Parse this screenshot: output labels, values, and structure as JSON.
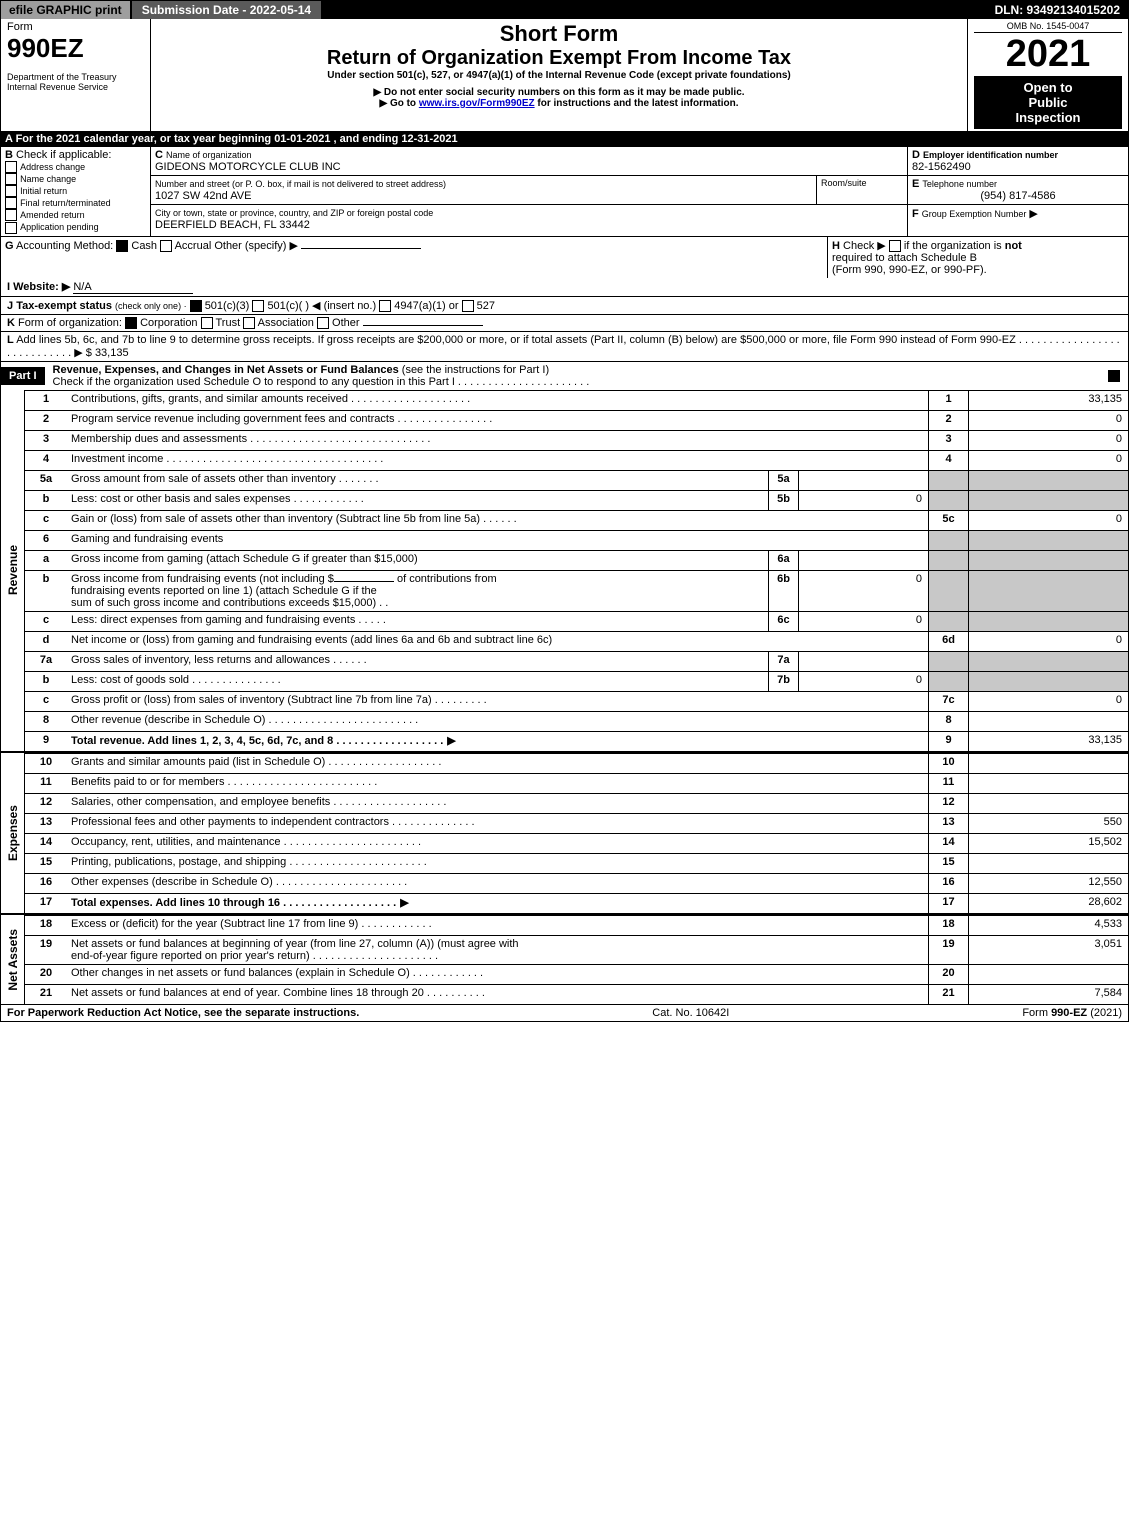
{
  "topbar": {
    "efile_label": "efile GRAPHIC print",
    "submission_label": "Submission Date - 2022-05-14",
    "dln_label": "DLN: 93492134015202"
  },
  "header": {
    "form_word": "Form",
    "form_number": "990EZ",
    "dept1": "Department of the Treasury",
    "dept2": "Internal Revenue Service",
    "short_form": "Short Form",
    "title": "Return of Organization Exempt From Income Tax",
    "subtitle": "Under section 501(c), 527, or 4947(a)(1) of the Internal Revenue Code (except private foundations)",
    "warn1": "▶ Do not enter social security numbers on this form as it may be made public.",
    "warn2_pre": "▶ Go to ",
    "warn2_link": "www.irs.gov/Form990EZ",
    "warn2_post": " for instructions and the latest information.",
    "omb": "OMB No. 1545-0047",
    "year": "2021",
    "open1": "Open to",
    "open2": "Public",
    "open3": "Inspection"
  },
  "sectionA": {
    "line": "A  For the 2021 calendar year, or tax year beginning 01-01-2021 , and ending 12-31-2021"
  },
  "sectionB": {
    "label": "B",
    "check_label": "Check if applicable:",
    "opts": [
      "Address change",
      "Name change",
      "Initial return",
      "Final return/terminated",
      "Amended return",
      "Application pending"
    ]
  },
  "sectionC": {
    "label_c": "C",
    "name_label": "Name of organization",
    "name": "GIDEONS MOTORCYCLE CLUB INC",
    "street_label": "Number and street (or P. O. box, if mail is not delivered to street address)",
    "street": "1027 SW 42nd AVE",
    "room_label": "Room/suite",
    "city_label": "City or town, state or province, country, and ZIP or foreign postal code",
    "city": "DEERFIELD BEACH, FL  33442"
  },
  "sectionD": {
    "label_d": "D",
    "ein_label": "Employer identification number",
    "ein": "82-1562490",
    "label_e": "E",
    "tel_label": "Telephone number",
    "tel": "(954) 817-4586",
    "label_f": "F",
    "group_label": "Group Exemption Number",
    "arrow": "▶"
  },
  "sectionG": {
    "label": "G",
    "text": "Accounting Method:",
    "cash": "Cash",
    "accrual": "Accrual",
    "other": "Other (specify) ▶"
  },
  "sectionH": {
    "label": "H",
    "text1": "Check ▶",
    "text2": "if the organization is ",
    "not_word": "not",
    "text3": "required to attach Schedule B",
    "text4": "(Form 990, 990-EZ, or 990-PF)."
  },
  "sectionI": {
    "label": "I",
    "text": "Website: ▶",
    "value": "N/A"
  },
  "sectionJ": {
    "label": "J",
    "text": "Tax-exempt status",
    "sub": "(check only one) ·",
    "o1": "501(c)(3)",
    "o2": "501(c)(  ) ◀ (insert no.)",
    "o3": "4947(a)(1) or",
    "o4": "527"
  },
  "sectionK": {
    "label": "K",
    "text": "Form of organization:",
    "o1": "Corporation",
    "o2": "Trust",
    "o3": "Association",
    "o4": "Other"
  },
  "sectionL": {
    "label": "L",
    "text": "Add lines 5b, 6c, and 7b to line 9 to determine gross receipts. If gross receipts are $200,000 or more, or if total assets (Part II, column (B) below) are $500,000 or more, file Form 990 instead of Form 990-EZ  .  .  .  .  .  .  .  .  .  .  .  .  .  .  .  .  .  .  .  .  .  .  .  .  .  .  .  . ▶",
    "amount": "$ 33,135"
  },
  "part1": {
    "label": "Part I",
    "title": "Revenue, Expenses, and Changes in Net Assets or Fund Balances",
    "title_sub": " (see the instructions for Part I)",
    "check_line": "Check if the organization used Schedule O to respond to any question in this Part I .  .  .  .  .  .  .  .  .  .  .  .  .  .  .  .  .  .  .  .  .  ."
  },
  "side_labels": {
    "revenue": "Revenue",
    "expenses": "Expenses",
    "netassets": "Net Assets"
  },
  "lines": {
    "l1": {
      "n": "1",
      "d": "Contributions, gifts, grants, and similar amounts received  .  .  .  .  .  .  .  .  .  .  .  .  .  .  .  .  .  .  .  .",
      "k": "1",
      "v": "33,135"
    },
    "l2": {
      "n": "2",
      "d": "Program service revenue including government fees and contracts  .  .  .  .  .  .  .  .  .  .  .  .  .  .  .  .",
      "k": "2",
      "v": "0"
    },
    "l3": {
      "n": "3",
      "d": "Membership dues and assessments  .  .  .  .  .  .  .  .  .  .  .  .  .  .  .  .  .  .  .  .  .  .  .  .  .  .  .  .  .  .",
      "k": "3",
      "v": "0"
    },
    "l4": {
      "n": "4",
      "d": "Investment income  .  .  .  .  .  .  .  .  .  .  .  .  .  .  .  .  .  .  .  .  .  .  .  .  .  .  .  .  .  .  .  .  .  .  .  .",
      "k": "4",
      "v": "0"
    },
    "l5a": {
      "n": "5a",
      "d": "Gross amount from sale of assets other than inventory  .  .  .  .  .  .  .",
      "s": "5a",
      "sv": ""
    },
    "l5b": {
      "n": "b",
      "d": "Less: cost or other basis and sales expenses  .  .  .  .  .  .  .  .  .  .  .  .",
      "s": "5b",
      "sv": "0"
    },
    "l5c": {
      "n": "c",
      "d": "Gain or (loss) from sale of assets other than inventory (Subtract line 5b from line 5a)  .  .  .  .  .  .",
      "k": "5c",
      "v": "0"
    },
    "l6": {
      "n": "6",
      "d": "Gaming and fundraising events"
    },
    "l6a": {
      "n": "a",
      "d": "Gross income from gaming (attach Schedule G if greater than $15,000)",
      "s": "6a",
      "sv": ""
    },
    "l6b_pre": "Gross income from fundraising events (not including $",
    "l6b_mid1": "of contributions from",
    "l6b_mid2": "fundraising events reported on line 1) (attach Schedule G if the",
    "l6b_mid3": "sum of such gross income and contributions exceeds $15,000)    .  .",
    "l6b": {
      "n": "b",
      "s": "6b",
      "sv": "0"
    },
    "l6c": {
      "n": "c",
      "d": "Less: direct expenses from gaming and fundraising events  .  .  .  .  .",
      "s": "6c",
      "sv": "0"
    },
    "l6d": {
      "n": "d",
      "d": "Net income or (loss) from gaming and fundraising events (add lines 6a and 6b and subtract line 6c)",
      "k": "6d",
      "v": "0"
    },
    "l7a": {
      "n": "7a",
      "d": "Gross sales of inventory, less returns and allowances  .  .  .  .  .  .",
      "s": "7a",
      "sv": ""
    },
    "l7b": {
      "n": "b",
      "d": "Less: cost of goods sold       .  .  .  .  .  .  .  .  .  .  .  .  .  .  .",
      "s": "7b",
      "sv": "0"
    },
    "l7c": {
      "n": "c",
      "d": "Gross profit or (loss) from sales of inventory (Subtract line 7b from line 7a)  .  .  .  .  .  .  .  .  .",
      "k": "7c",
      "v": "0"
    },
    "l8": {
      "n": "8",
      "d": "Other revenue (describe in Schedule O)  .  .  .  .  .  .  .  .  .  .  .  .  .  .  .  .  .  .  .  .  .  .  .  .  .",
      "k": "8",
      "v": ""
    },
    "l9": {
      "n": "9",
      "d": "Total revenue. Add lines 1, 2, 3, 4, 5c, 6d, 7c, and 8  .  .  .  .  .  .  .  .  .  .  .  .  .  .  .  .  .  .",
      "arrow": "▶",
      "k": "9",
      "v": "33,135",
      "bold": true
    },
    "l10": {
      "n": "10",
      "d": "Grants and similar amounts paid (list in Schedule O)  .  .  .  .  .  .  .  .  .  .  .  .  .  .  .  .  .  .  .",
      "k": "10",
      "v": ""
    },
    "l11": {
      "n": "11",
      "d": "Benefits paid to or for members      .  .  .  .  .  .  .  .  .  .  .  .  .  .  .  .  .  .  .  .  .  .  .  .  .",
      "k": "11",
      "v": ""
    },
    "l12": {
      "n": "12",
      "d": "Salaries, other compensation, and employee benefits  .  .  .  .  .  .  .  .  .  .  .  .  .  .  .  .  .  .  .",
      "k": "12",
      "v": ""
    },
    "l13": {
      "n": "13",
      "d": "Professional fees and other payments to independent contractors  .  .  .  .  .  .  .  .  .  .  .  .  .  .",
      "k": "13",
      "v": "550"
    },
    "l14": {
      "n": "14",
      "d": "Occupancy, rent, utilities, and maintenance  .  .  .  .  .  .  .  .  .  .  .  .  .  .  .  .  .  .  .  .  .  .  .",
      "k": "14",
      "v": "15,502"
    },
    "l15": {
      "n": "15",
      "d": "Printing, publications, postage, and shipping .  .  .  .  .  .  .  .  .  .  .  .  .  .  .  .  .  .  .  .  .  .  .",
      "k": "15",
      "v": ""
    },
    "l16": {
      "n": "16",
      "d": "Other expenses (describe in Schedule O)      .  .  .  .  .  .  .  .  .  .  .  .  .  .  .  .  .  .  .  .  .  .",
      "k": "16",
      "v": "12,550"
    },
    "l17": {
      "n": "17",
      "d": "Total expenses. Add lines 10 through 16      .  .  .  .  .  .  .  .  .  .  .  .  .  .  .  .  .  .  .",
      "arrow": "▶",
      "k": "17",
      "v": "28,602",
      "bold": true
    },
    "l18": {
      "n": "18",
      "d": "Excess or (deficit) for the year (Subtract line 17 from line 9)       .  .  .  .  .  .  .  .  .  .  .  .",
      "k": "18",
      "v": "4,533"
    },
    "l19a": "Net assets or fund balances at beginning of year (from line 27, column (A)) (must agree with",
    "l19b": "end-of-year figure reported on prior year's return)  .  .  .  .  .  .  .  .  .  .  .  .  .  .  .  .  .  .  .  .  .",
    "l19": {
      "n": "19",
      "k": "19",
      "v": "3,051"
    },
    "l20": {
      "n": "20",
      "d": "Other changes in net assets or fund balances (explain in Schedule O)  .  .  .  .  .  .  .  .  .  .  .  .",
      "k": "20",
      "v": ""
    },
    "l21": {
      "n": "21",
      "d": "Net assets or fund balances at end of year. Combine lines 18 through 20  .  .  .  .  .  .  .  .  .  .",
      "k": "21",
      "v": "7,584"
    }
  },
  "footer": {
    "left": "For Paperwork Reduction Act Notice, see the separate instructions.",
    "mid": "Cat. No. 10642I",
    "right_pre": "Form ",
    "right_bold": "990-EZ",
    "right_post": " (2021)"
  },
  "colors": {
    "topbar_grey": "#9e9e9e",
    "topbar_mid": "#5a5a5a",
    "grey_cell": "#c8c8c8",
    "link": "#0000cc"
  }
}
